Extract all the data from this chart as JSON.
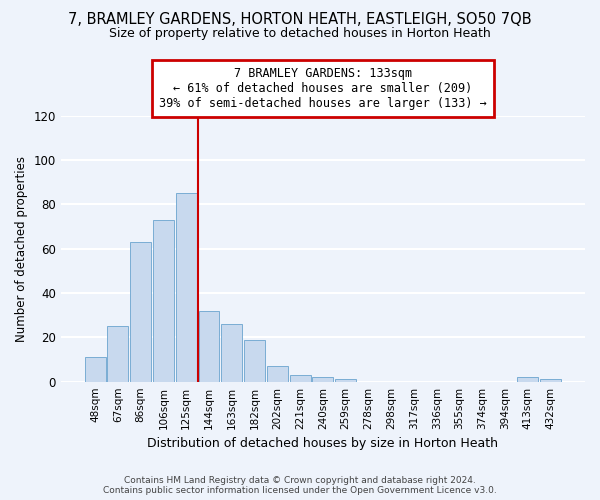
{
  "title": "7, BRAMLEY GARDENS, HORTON HEATH, EASTLEIGH, SO50 7QB",
  "subtitle": "Size of property relative to detached houses in Horton Heath",
  "xlabel": "Distribution of detached houses by size in Horton Heath",
  "ylabel": "Number of detached properties",
  "bar_labels": [
    "48sqm",
    "67sqm",
    "86sqm",
    "106sqm",
    "125sqm",
    "144sqm",
    "163sqm",
    "182sqm",
    "202sqm",
    "221sqm",
    "240sqm",
    "259sqm",
    "278sqm",
    "298sqm",
    "317sqm",
    "336sqm",
    "355sqm",
    "374sqm",
    "394sqm",
    "413sqm",
    "432sqm"
  ],
  "bar_values": [
    11,
    25,
    63,
    73,
    85,
    32,
    26,
    19,
    7,
    3,
    2,
    1,
    0,
    0,
    0,
    0,
    0,
    0,
    0,
    2,
    1
  ],
  "bar_color": "#c8d9ee",
  "bar_edge_color": "#7aadd4",
  "vline_x": 4.5,
  "vline_color": "#cc0000",
  "annotation_title": "7 BRAMLEY GARDENS: 133sqm",
  "annotation_line1": "← 61% of detached houses are smaller (209)",
  "annotation_line2": "39% of semi-detached houses are larger (133) →",
  "annotation_box_color": "#ffffff",
  "annotation_box_edge": "#cc0000",
  "ylim": [
    0,
    120
  ],
  "yticks": [
    0,
    20,
    40,
    60,
    80,
    100,
    120
  ],
  "footer1": "Contains HM Land Registry data © Crown copyright and database right 2024.",
  "footer2": "Contains public sector information licensed under the Open Government Licence v3.0.",
  "bg_color": "#eef3fb",
  "grid_color": "#ffffff"
}
